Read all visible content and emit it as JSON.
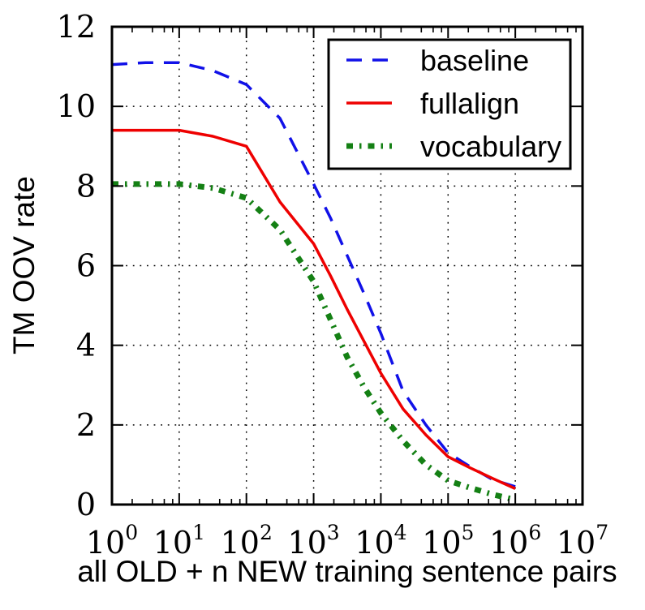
{
  "figure": {
    "background": "#ffffff",
    "frame_color": "#000000"
  },
  "chart_data": {
    "type": "line",
    "title": "",
    "xlabel": "all OLD + n NEW training sentence pairs",
    "ylabel": "TM OOV rate",
    "x_scale": "log10",
    "xlim_log10": [
      0,
      7
    ],
    "ylim": [
      0,
      12
    ],
    "x_tick_exponents": [
      0,
      1,
      2,
      3,
      4,
      5,
      6,
      7
    ],
    "x_tick_labels": [
      "10^0",
      "10^1",
      "10^2",
      "10^3",
      "10^4",
      "10^5",
      "10^6",
      "10^7"
    ],
    "x_minor_tick_multiples": [
      2,
      4,
      6,
      8
    ],
    "y_ticks": [
      0,
      2,
      4,
      6,
      8,
      10,
      12
    ],
    "grid": {
      "style": "dotted",
      "color": "#000000",
      "x_at_exponents": [
        1,
        2,
        3,
        4,
        5,
        6
      ],
      "y_at": [
        2,
        4,
        6,
        8,
        10
      ]
    },
    "legend": {
      "position": "top-right-inside",
      "border_color": "#000000",
      "background": "#ffffff"
    },
    "x_log10": [
      0,
      0.5,
      1,
      1.5,
      2,
      2.5,
      3,
      3.25,
      3.5,
      3.75,
      4,
      4.33,
      4.67,
      5,
      5.33,
      5.67,
      6
    ],
    "series": [
      {
        "name": "baseline",
        "color": "#1111e8",
        "style": "dashed",
        "values": [
          11.05,
          11.1,
          11.1,
          10.9,
          10.55,
          9.7,
          8.05,
          7.2,
          6.25,
          5.3,
          4.3,
          2.85,
          2.0,
          1.3,
          0.95,
          0.62,
          0.45
        ]
      },
      {
        "name": "fullalign",
        "color": "#ee0000",
        "style": "solid",
        "values": [
          9.4,
          9.4,
          9.4,
          9.25,
          9.0,
          7.6,
          6.55,
          5.75,
          4.9,
          4.1,
          3.3,
          2.4,
          1.75,
          1.2,
          0.92,
          0.65,
          0.4
        ]
      },
      {
        "name": "vocabulary",
        "color": "#148014",
        "style": "dashdot",
        "values": [
          8.05,
          8.05,
          8.05,
          7.95,
          7.7,
          6.9,
          5.6,
          4.65,
          3.7,
          2.95,
          2.3,
          1.6,
          1.0,
          0.6,
          0.42,
          0.25,
          0.12
        ]
      }
    ]
  }
}
